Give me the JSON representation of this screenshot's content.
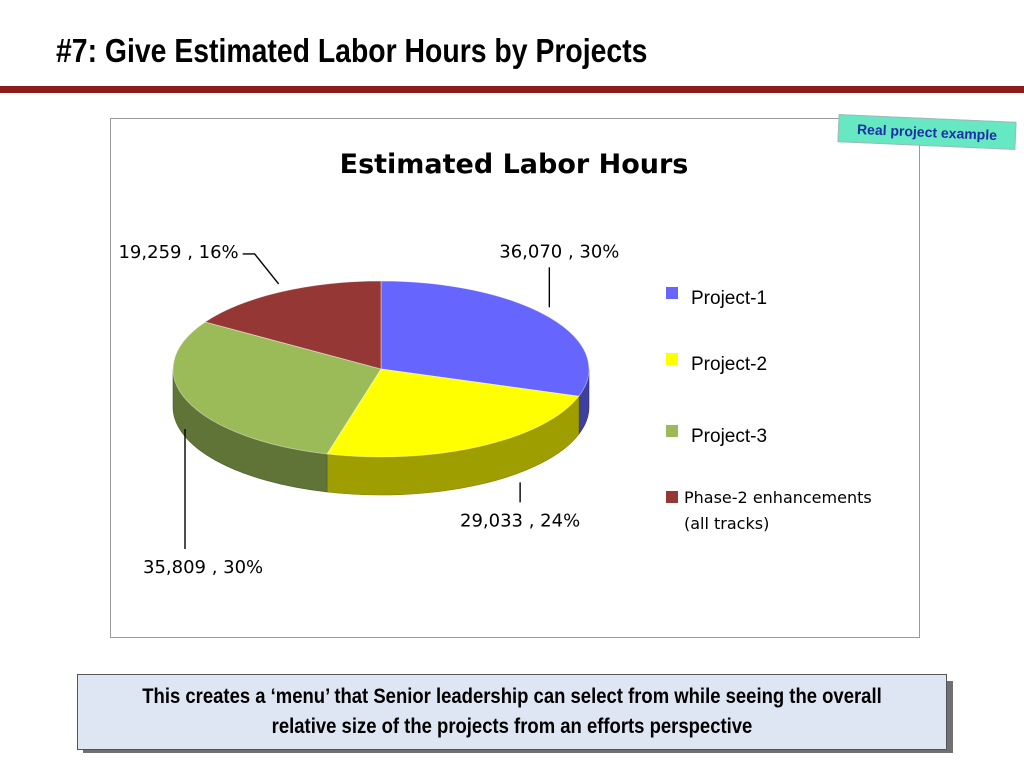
{
  "slide": {
    "title": "#7: Give Estimated Labor Hours by Projects",
    "badge": "Real project example",
    "caption": "This creates a ‘menu’ that Senior leadership can select from while seeing the overall relative size of the projects from an efforts perspective"
  },
  "chart_data": {
    "type": "pie",
    "title": "Estimated Labor Hours",
    "style": "3d",
    "legend_position": "right",
    "slices": [
      {
        "name": "Project-1",
        "value": 36070,
        "percent": 30,
        "label": "36,070 , 30%",
        "color": "#6666ff"
      },
      {
        "name": "Project-2",
        "value": 29033,
        "percent": 24,
        "label": "29,033 , 24%",
        "color": "#ffff00"
      },
      {
        "name": "Project-3",
        "value": 35809,
        "percent": 30,
        "label": "35,809 , 30%",
        "color": "#9bbb59"
      },
      {
        "name": "Phase-2 enhancements (all tracks)",
        "legend_lines": [
          "Phase-2 enhancements",
          "(all tracks)"
        ],
        "value": 19259,
        "percent": 16,
        "label": "19,259 , 16%",
        "color": "#953735"
      }
    ]
  }
}
